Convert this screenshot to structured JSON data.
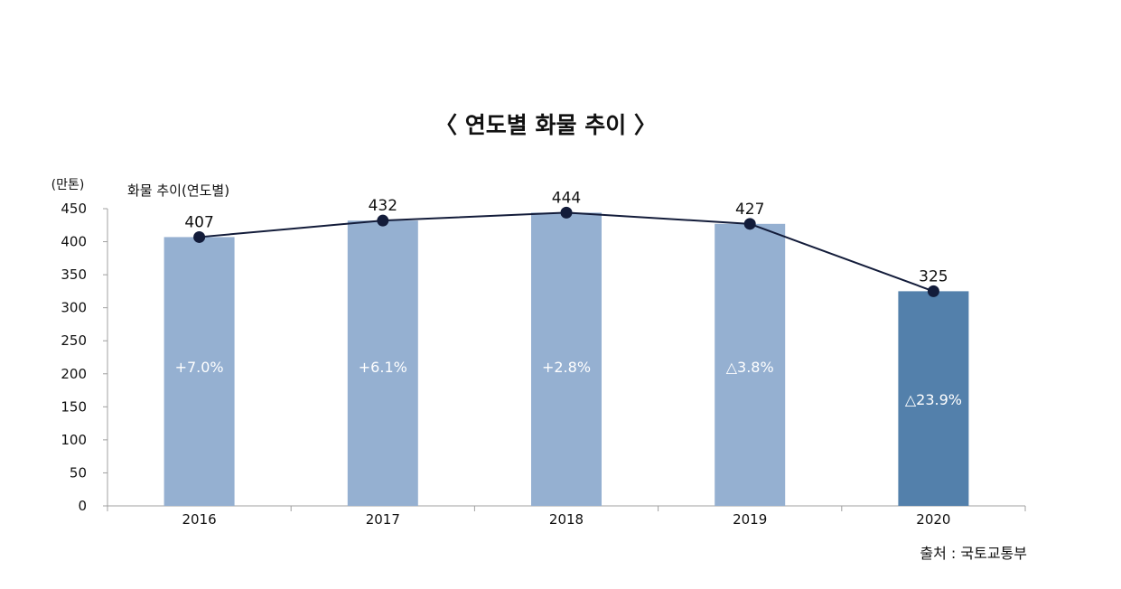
{
  "chart_data": {
    "type": "bar",
    "title": "〈 연도별 화물 추이 〉",
    "unit_label": "(만톤)",
    "series_label": "화물 추이(연도별)",
    "source": "출처 : 국토교통부",
    "categories": [
      "2016",
      "2017",
      "2018",
      "2019",
      "2020"
    ],
    "values": [
      407,
      432,
      444,
      427,
      325
    ],
    "value_labels": [
      "407",
      "432",
      "444",
      "427",
      "325"
    ],
    "change_labels": [
      "+7.0%",
      "+6.1%",
      "+2.8%",
      "△3.8%",
      "△23.9%"
    ],
    "overlay_line": true,
    "ylim": [
      0,
      450
    ],
    "yticks": [
      0,
      50,
      100,
      150,
      200,
      250,
      300,
      350,
      400,
      450
    ],
    "grid": false,
    "colors": {
      "bar": "#95b0d1",
      "highlight_bar": "#5380ab",
      "line": "#131c3a",
      "marker": "#131c3a",
      "axis": "#a0a0a0"
    }
  }
}
